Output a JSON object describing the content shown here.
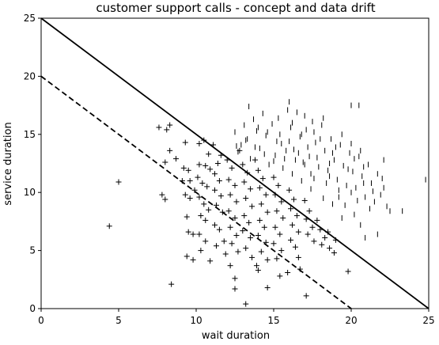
{
  "chart_data": {
    "type": "scatter",
    "title": "customer support calls - concept and data drift",
    "xlabel": "wait duration",
    "ylabel": "service duration",
    "xlim": [
      0,
      25
    ],
    "ylim": [
      0,
      25
    ],
    "xticks": [
      0,
      5,
      10,
      15,
      20,
      25
    ],
    "yticks": [
      0,
      5,
      10,
      15,
      20,
      25
    ],
    "grid": false,
    "legend": "none",
    "lines": [
      {
        "style": "solid",
        "x": [
          0,
          25
        ],
        "y": [
          25,
          0
        ]
      },
      {
        "style": "dashed",
        "x": [
          0,
          20
        ],
        "y": [
          20,
          0
        ]
      }
    ],
    "series": [
      {
        "marker": "plus",
        "points": [
          [
            4.4,
            7.1
          ],
          [
            5.0,
            10.9
          ],
          [
            7.6,
            15.6
          ],
          [
            8.1,
            15.4
          ],
          [
            8.3,
            15.8
          ],
          [
            8.0,
            12.6
          ],
          [
            8.3,
            13.6
          ],
          [
            8.7,
            12.9
          ],
          [
            7.8,
            9.8
          ],
          [
            8.0,
            9.4
          ],
          [
            8.4,
            2.1
          ],
          [
            9.3,
            14.3
          ],
          [
            9.2,
            12.1
          ],
          [
            9.5,
            11.9
          ],
          [
            9.1,
            11.0
          ],
          [
            9.6,
            11.0
          ],
          [
            9.9,
            10.2
          ],
          [
            9.3,
            9.8
          ],
          [
            9.6,
            9.5
          ],
          [
            9.4,
            7.9
          ],
          [
            9.5,
            6.6
          ],
          [
            9.8,
            6.4
          ],
          [
            9.4,
            4.5
          ],
          [
            9.8,
            4.2
          ],
          [
            10.2,
            14.2
          ],
          [
            10.5,
            14.5
          ],
          [
            10.2,
            12.4
          ],
          [
            10.6,
            12.3
          ],
          [
            10.9,
            12.0
          ],
          [
            10.1,
            11.3
          ],
          [
            10.4,
            10.8
          ],
          [
            10.7,
            10.5
          ],
          [
            10.2,
            9.6
          ],
          [
            10.5,
            9.0
          ],
          [
            10.8,
            8.5
          ],
          [
            10.3,
            8.0
          ],
          [
            10.6,
            7.6
          ],
          [
            10.2,
            6.4
          ],
          [
            10.6,
            5.8
          ],
          [
            10.3,
            5.0
          ],
          [
            10.9,
            4.1
          ],
          [
            11.1,
            14.1
          ],
          [
            11.4,
            12.5
          ],
          [
            11.2,
            11.6
          ],
          [
            11.5,
            11.0
          ],
          [
            11.2,
            10.2
          ],
          [
            11.6,
            9.7
          ],
          [
            11.3,
            8.9
          ],
          [
            11.7,
            8.3
          ],
          [
            11.2,
            7.2
          ],
          [
            11.5,
            6.8
          ],
          [
            11.8,
            5.8
          ],
          [
            11.3,
            5.4
          ],
          [
            11.9,
            4.7
          ],
          [
            12.0,
            12.8
          ],
          [
            12.3,
            12.1
          ],
          [
            12.1,
            11.1
          ],
          [
            12.5,
            10.6
          ],
          [
            12.2,
            9.8
          ],
          [
            12.6,
            9.2
          ],
          [
            12.1,
            8.4
          ],
          [
            12.5,
            7.8
          ],
          [
            12.2,
            7.0
          ],
          [
            12.6,
            6.3
          ],
          [
            12.3,
            5.6
          ],
          [
            12.7,
            4.9
          ],
          [
            12.2,
            3.7
          ],
          [
            12.5,
            2.6
          ],
          [
            12.5,
            1.7
          ],
          [
            13.0,
            12.4
          ],
          [
            13.3,
            11.7
          ],
          [
            13.1,
            10.9
          ],
          [
            13.5,
            10.3
          ],
          [
            13.2,
            9.5
          ],
          [
            13.6,
            8.8
          ],
          [
            13.1,
            8.0
          ],
          [
            13.4,
            7.4
          ],
          [
            13.0,
            6.7
          ],
          [
            13.5,
            6.1
          ],
          [
            13.2,
            5.2
          ],
          [
            13.6,
            4.4
          ],
          [
            13.2,
            0.4
          ],
          [
            13.9,
            3.7
          ],
          [
            14.0,
            11.9
          ],
          [
            14.3,
            11.2
          ],
          [
            14.1,
            10.4
          ],
          [
            14.5,
            9.8
          ],
          [
            14.2,
            9.0
          ],
          [
            14.6,
            8.3
          ],
          [
            14.1,
            7.6
          ],
          [
            14.4,
            7.0
          ],
          [
            14.0,
            6.3
          ],
          [
            14.5,
            5.7
          ],
          [
            14.2,
            4.9
          ],
          [
            14.6,
            4.2
          ],
          [
            14.0,
            3.3
          ],
          [
            14.6,
            1.8
          ],
          [
            15.0,
            11.3
          ],
          [
            15.3,
            10.6
          ],
          [
            15.1,
            9.8
          ],
          [
            15.5,
            9.2
          ],
          [
            15.2,
            8.4
          ],
          [
            15.6,
            7.8
          ],
          [
            15.1,
            7.0
          ],
          [
            15.4,
            6.4
          ],
          [
            15.0,
            5.6
          ],
          [
            15.5,
            5.0
          ],
          [
            15.2,
            4.3
          ],
          [
            15.4,
            2.8
          ],
          [
            15.9,
            3.1
          ],
          [
            16.0,
            10.2
          ],
          [
            16.3,
            9.4
          ],
          [
            16.1,
            8.6
          ],
          [
            16.5,
            8.0
          ],
          [
            16.2,
            7.2
          ],
          [
            16.6,
            6.6
          ],
          [
            16.1,
            5.9
          ],
          [
            16.4,
            5.3
          ],
          [
            16.6,
            4.4
          ],
          [
            16.7,
            3.4
          ],
          [
            17.0,
            9.3
          ],
          [
            17.3,
            8.4
          ],
          [
            17.1,
            7.7
          ],
          [
            17.5,
            7.0
          ],
          [
            17.2,
            6.4
          ],
          [
            17.6,
            5.8
          ],
          [
            17.1,
            1.1
          ],
          [
            17.8,
            7.6
          ],
          [
            18.0,
            6.8
          ],
          [
            18.3,
            6.1
          ],
          [
            18.1,
            5.5
          ],
          [
            18.6,
            5.2
          ],
          [
            18.9,
            4.8
          ],
          [
            18.5,
            6.6
          ],
          [
            19.0,
            5.9
          ],
          [
            19.8,
            3.2
          ],
          [
            11.6,
            13.2
          ],
          [
            12.8,
            13.6
          ],
          [
            13.8,
            12.8
          ],
          [
            10.8,
            13.3
          ]
        ]
      },
      {
        "marker": "vline",
        "points": [
          [
            12.5,
            15.2
          ],
          [
            12.7,
            13.5
          ],
          [
            12.9,
            14.1
          ],
          [
            13.1,
            15.8
          ],
          [
            13.3,
            14.6
          ],
          [
            13.5,
            12.9
          ],
          [
            13.7,
            16.3
          ],
          [
            13.4,
            17.4
          ],
          [
            13.9,
            15.3
          ],
          [
            14.1,
            13.8
          ],
          [
            14.3,
            16.8
          ],
          [
            14.5,
            14.9
          ],
          [
            14.7,
            12.4
          ],
          [
            14.9,
            15.9
          ],
          [
            15.1,
            13.2
          ],
          [
            15.3,
            16.4
          ],
          [
            15.5,
            14.2
          ],
          [
            15.7,
            12.9
          ],
          [
            15.9,
            17.1
          ],
          [
            16.0,
            17.8
          ],
          [
            16.1,
            15.6
          ],
          [
            16.3,
            13.7
          ],
          [
            16.5,
            16.9
          ],
          [
            16.7,
            14.8
          ],
          [
            16.9,
            12.6
          ],
          [
            17.1,
            15.4
          ],
          [
            17.3,
            13.1
          ],
          [
            17.5,
            16.1
          ],
          [
            17.7,
            14.3
          ],
          [
            17.9,
            12.2
          ],
          [
            18.1,
            15.8
          ],
          [
            18.3,
            13.6
          ],
          [
            18.5,
            11.9
          ],
          [
            18.7,
            14.6
          ],
          [
            18.9,
            12.8
          ],
          [
            19.1,
            11.1
          ],
          [
            19.3,
            14.1
          ],
          [
            19.5,
            12.3
          ],
          [
            19.7,
            10.6
          ],
          [
            19.9,
            13.4
          ],
          [
            20.0,
            17.5
          ],
          [
            20.1,
            11.8
          ],
          [
            20.3,
            10.4
          ],
          [
            20.5,
            17.5
          ],
          [
            20.5,
            13.1
          ],
          [
            20.7,
            11.4
          ],
          [
            20.9,
            9.6
          ],
          [
            21.1,
            12.4
          ],
          [
            21.3,
            10.8
          ],
          [
            21.5,
            9.2
          ],
          [
            21.7,
            11.6
          ],
          [
            21.9,
            9.8
          ],
          [
            22.1,
            10.4
          ],
          [
            22.3,
            8.8
          ],
          [
            22.5,
            8.4
          ],
          [
            23.3,
            8.4
          ],
          [
            24.8,
            11.1
          ],
          [
            22.1,
            12.8
          ],
          [
            20.2,
            8.1
          ],
          [
            20.6,
            7.2
          ],
          [
            20.9,
            6.1
          ],
          [
            21.7,
            6.4
          ],
          [
            19.4,
            7.8
          ],
          [
            18.2,
            9.5
          ],
          [
            17.4,
            10.3
          ],
          [
            16.8,
            11.0
          ],
          [
            16.2,
            11.6
          ],
          [
            15.6,
            12.1
          ],
          [
            15.0,
            12.7
          ],
          [
            14.4,
            13.3
          ],
          [
            13.8,
            13.9
          ],
          [
            13.2,
            14.5
          ],
          [
            12.6,
            14.0
          ],
          [
            18.8,
            9.0
          ],
          [
            19.6,
            8.9
          ],
          [
            20.4,
            9.3
          ],
          [
            21.2,
            8.6
          ],
          [
            17.6,
            11.2
          ],
          [
            18.4,
            10.8
          ],
          [
            19.2,
            10.2
          ],
          [
            16.4,
            12.8
          ],
          [
            17.0,
            12.4
          ],
          [
            15.8,
            13.6
          ],
          [
            15.2,
            14.4
          ],
          [
            14.6,
            15.2
          ],
          [
            14.0,
            15.6
          ],
          [
            16.6,
            13.4
          ],
          [
            17.2,
            13.9
          ],
          [
            17.8,
            13.0
          ],
          [
            18.6,
            12.5
          ],
          [
            19.0,
            13.9
          ],
          [
            19.8,
            12.0
          ],
          [
            20.2,
            12.9
          ],
          [
            20.8,
            12.2
          ],
          [
            21.4,
            10.1
          ],
          [
            16.0,
            14.4
          ],
          [
            16.8,
            15.0
          ],
          [
            17.6,
            15.2
          ],
          [
            18.0,
            14.6
          ],
          [
            18.8,
            13.4
          ],
          [
            19.4,
            15.0
          ],
          [
            20.0,
            14.2
          ],
          [
            20.6,
            13.6
          ],
          [
            15.4,
            15.0
          ],
          [
            16.2,
            16.0
          ],
          [
            17.0,
            16.6
          ],
          [
            18.2,
            16.4
          ],
          [
            17.4,
            11.6
          ],
          [
            18.6,
            11.4
          ],
          [
            19.2,
            9.6
          ],
          [
            20.0,
            10.0
          ],
          [
            20.8,
            10.8
          ],
          [
            22.0,
            11.2
          ]
        ]
      }
    ]
  }
}
